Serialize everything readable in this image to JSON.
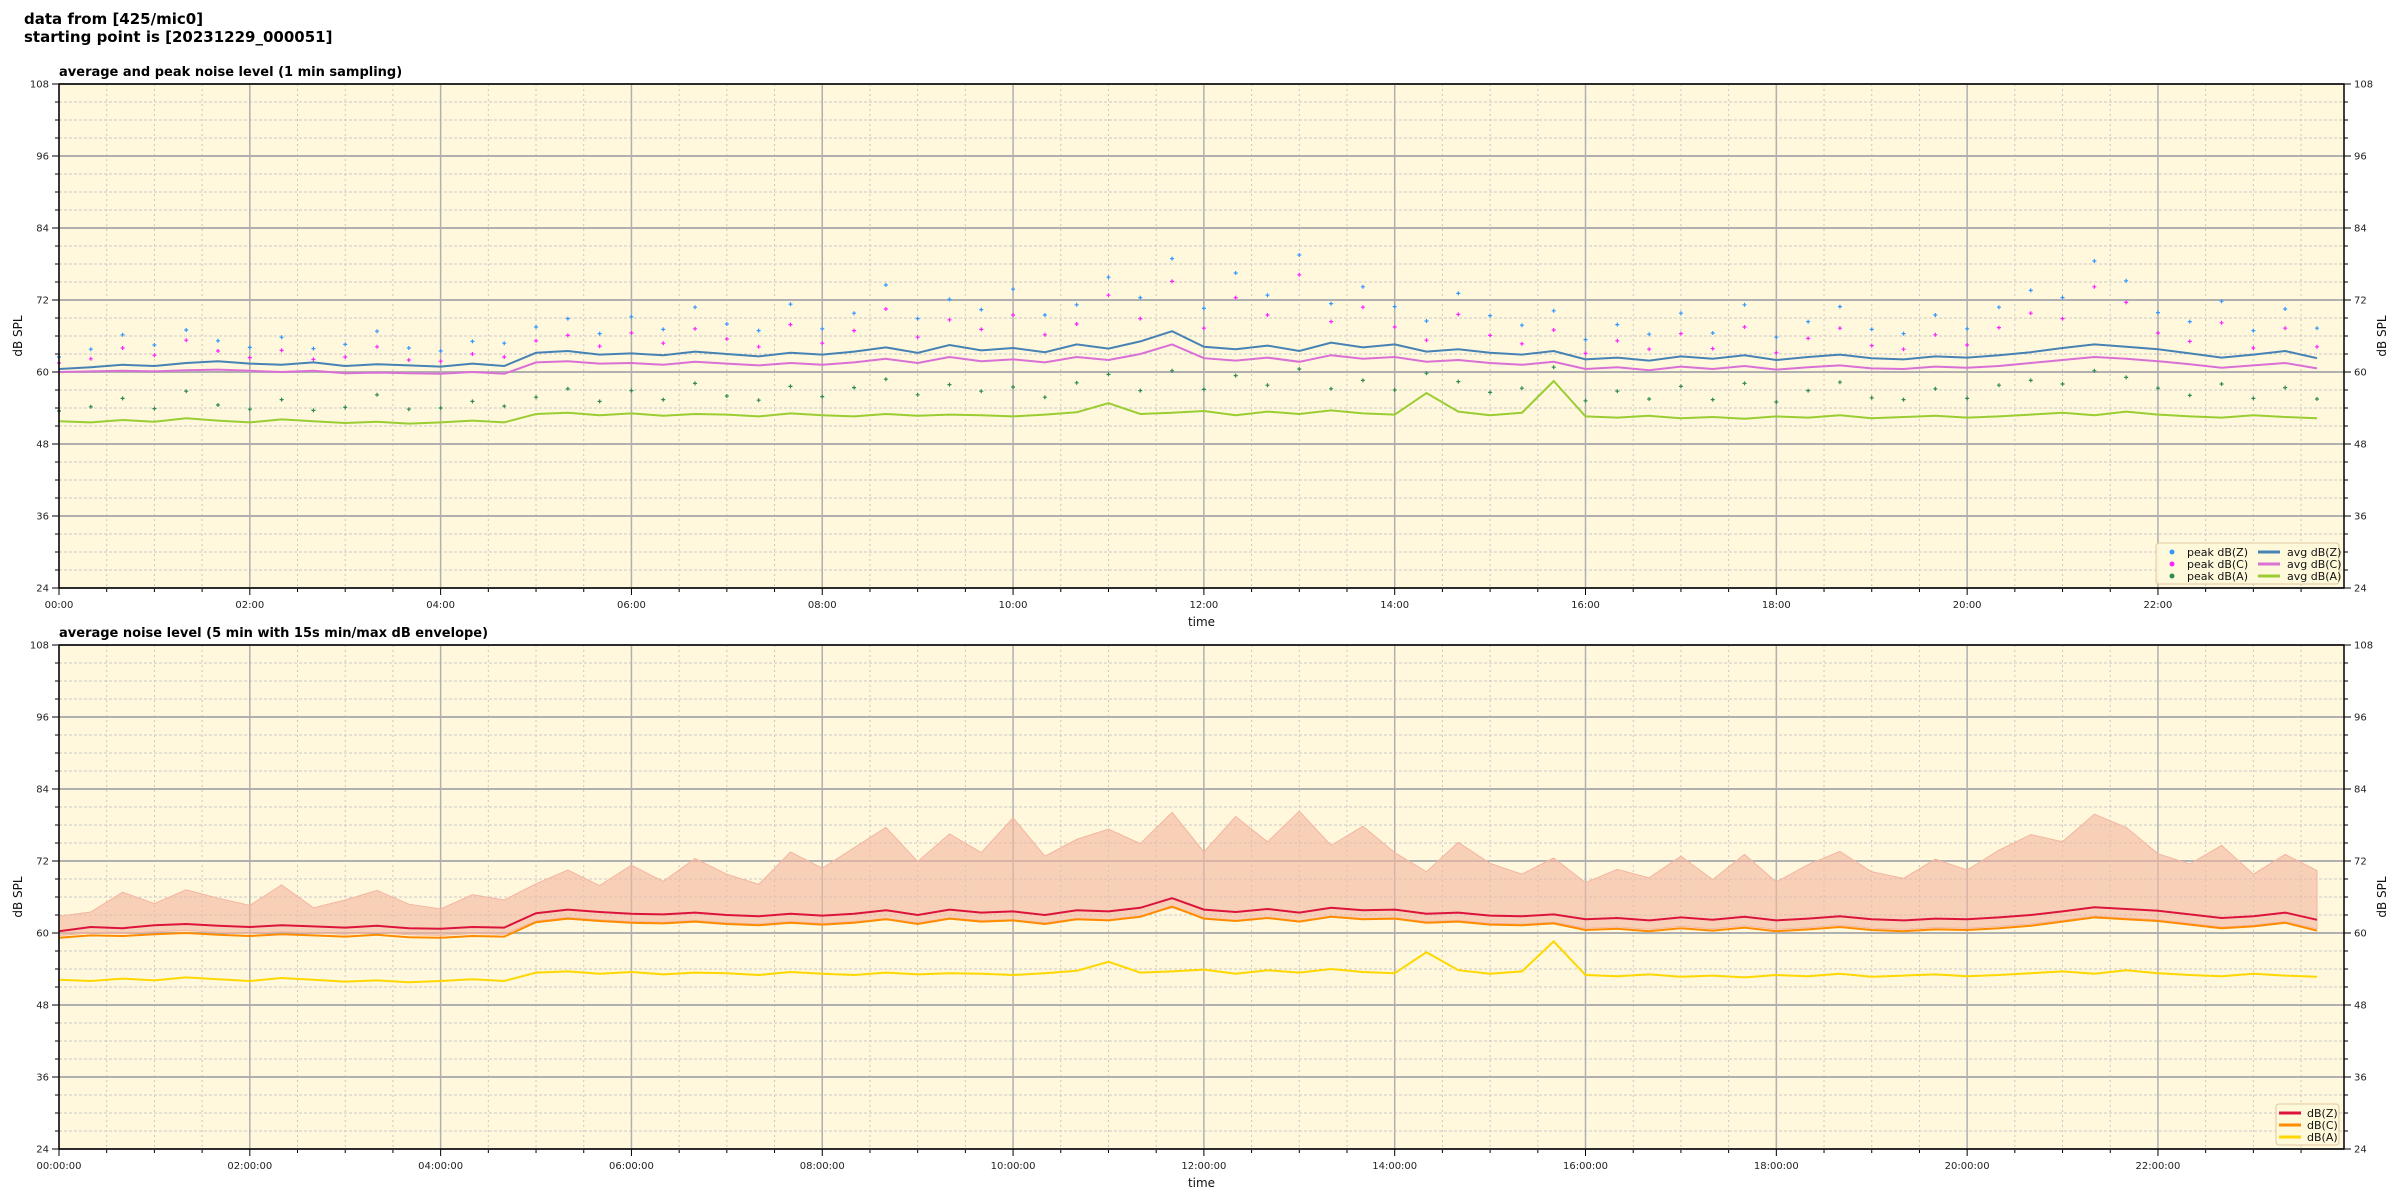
{
  "header": {
    "line1": "data from [425/mic0]",
    "line2": "starting point is [20231229_000051]"
  },
  "colors": {
    "background": "#fff8dc",
    "major_grid": "#b0b0b0",
    "minor_grid": "#c8c8c8"
  },
  "chart_data": [
    {
      "type": "line+scatter",
      "title": "average and peak noise level (1 min sampling)",
      "xlabel": "time",
      "ylabel": "dB SPL",
      "xlim": [
        "00:00",
        "23:57"
      ],
      "ylim": [
        24,
        108
      ],
      "xticks": [
        "00:00",
        "02:00",
        "04:00",
        "06:00",
        "08:00",
        "10:00",
        "12:00",
        "14:00",
        "16:00",
        "18:00",
        "20:00",
        "22:00"
      ],
      "yticks": [
        24,
        36,
        48,
        60,
        72,
        84,
        96,
        108
      ],
      "grid": true,
      "legend_placement": "lower-right",
      "x": [
        "00:00",
        "00:20",
        "00:40",
        "01:00",
        "01:20",
        "01:40",
        "02:00",
        "02:20",
        "02:40",
        "03:00",
        "03:20",
        "03:40",
        "04:00",
        "04:20",
        "04:40",
        "05:00",
        "05:20",
        "05:40",
        "06:00",
        "06:20",
        "06:40",
        "07:00",
        "07:20",
        "07:40",
        "08:00",
        "08:20",
        "08:40",
        "09:00",
        "09:20",
        "09:40",
        "10:00",
        "10:20",
        "10:40",
        "11:00",
        "11:20",
        "11:40",
        "12:00",
        "12:20",
        "12:40",
        "13:00",
        "13:20",
        "13:40",
        "14:00",
        "14:20",
        "14:40",
        "15:00",
        "15:20",
        "15:40",
        "16:00",
        "16:20",
        "16:40",
        "17:00",
        "17:20",
        "17:40",
        "18:00",
        "18:20",
        "18:40",
        "19:00",
        "19:20",
        "19:40",
        "20:00",
        "20:20",
        "20:40",
        "21:00",
        "21:20",
        "21:40",
        "22:00",
        "22:20",
        "22:40",
        "23:00",
        "23:20",
        "23:40"
      ],
      "series": [
        {
          "name": "peak dB(Z)",
          "kind": "scatter",
          "color": "#3399ff",
          "values": [
            62.5,
            63.8,
            66.2,
            64.5,
            67.0,
            65.2,
            64.1,
            65.8,
            63.9,
            64.6,
            66.8,
            64.0,
            63.5,
            65.1,
            64.8,
            67.5,
            68.9,
            66.4,
            69.2,
            67.1,
            70.8,
            68.0,
            66.9,
            71.3,
            67.2,
            69.8,
            74.5,
            68.9,
            72.1,
            70.4,
            73.8,
            69.5,
            71.2,
            75.8,
            72.4,
            78.9,
            70.6,
            76.5,
            72.8,
            79.5,
            71.4,
            74.2,
            70.9,
            68.5,
            73.1,
            69.4,
            67.8,
            70.2,
            65.4,
            67.9,
            66.3,
            69.8,
            66.5,
            71.2,
            65.8,
            68.4,
            70.9,
            67.1,
            66.4,
            69.5,
            67.2,
            70.8,
            73.6,
            72.4,
            78.5,
            75.2,
            69.9,
            68.4,
            71.8,
            66.9,
            70.5,
            67.3
          ]
        },
        {
          "name": "peak dB(C)",
          "kind": "scatter",
          "color": "#ff22ff",
          "values": [
            61.5,
            62.2,
            64.0,
            62.8,
            65.3,
            63.5,
            62.4,
            63.6,
            62.1,
            62.5,
            64.2,
            62.0,
            61.8,
            63.0,
            62.5,
            65.2,
            66.1,
            64.3,
            66.5,
            64.8,
            67.2,
            65.5,
            64.2,
            67.9,
            64.8,
            66.9,
            70.5,
            65.8,
            68.7,
            67.1,
            69.5,
            66.2,
            68.0,
            72.8,
            68.9,
            75.1,
            67.3,
            72.4,
            69.5,
            76.2,
            68.4,
            70.8,
            67.5,
            65.3,
            69.6,
            66.1,
            64.7,
            67.0,
            63.1,
            65.2,
            63.8,
            66.4,
            63.9,
            67.5,
            63.2,
            65.6,
            67.3,
            64.4,
            63.8,
            66.2,
            64.5,
            67.4,
            69.8,
            68.9,
            74.2,
            71.6,
            66.5,
            65.1,
            68.2,
            64.0,
            67.3,
            64.2
          ]
        },
        {
          "name": "peak dB(A)",
          "kind": "scatter",
          "color": "#2e8b57",
          "values": [
            53.5,
            54.2,
            55.6,
            53.9,
            56.8,
            54.5,
            53.8,
            55.4,
            53.6,
            54.1,
            56.2,
            53.8,
            54.0,
            55.1,
            54.3,
            55.8,
            57.2,
            55.1,
            56.9,
            55.4,
            58.1,
            56.0,
            55.3,
            57.6,
            55.9,
            57.4,
            58.8,
            56.2,
            57.9,
            56.8,
            57.5,
            55.8,
            58.2,
            59.6,
            56.9,
            60.2,
            57.1,
            59.4,
            57.8,
            60.5,
            57.2,
            58.6,
            57.0,
            59.8,
            58.4,
            56.6,
            57.3,
            60.8,
            55.2,
            56.8,
            55.5,
            57.6,
            55.4,
            58.1,
            55.0,
            56.9,
            58.3,
            55.7,
            55.4,
            57.2,
            55.6,
            57.8,
            58.6,
            58.0,
            60.2,
            59.1,
            57.3,
            56.1,
            58.0,
            55.6,
            57.4,
            55.5
          ]
        },
        {
          "name": "avg dB(Z)",
          "kind": "line",
          "color": "#4682b4",
          "values": [
            60.5,
            60.8,
            61.2,
            61.0,
            61.5,
            61.8,
            61.4,
            61.2,
            61.6,
            61.0,
            61.3,
            61.1,
            60.9,
            61.4,
            61.0,
            63.2,
            63.5,
            62.9,
            63.1,
            62.8,
            63.4,
            63.0,
            62.6,
            63.2,
            62.9,
            63.4,
            64.1,
            63.2,
            64.5,
            63.6,
            64.0,
            63.3,
            64.6,
            63.9,
            65.1,
            66.8,
            64.2,
            63.8,
            64.4,
            63.5,
            64.9,
            64.1,
            64.6,
            63.4,
            63.8,
            63.2,
            62.9,
            63.5,
            62.1,
            62.4,
            61.9,
            62.6,
            62.2,
            62.8,
            62.0,
            62.5,
            62.9,
            62.3,
            62.1,
            62.6,
            62.4,
            62.8,
            63.3,
            64.0,
            64.6,
            64.2,
            63.8,
            63.1,
            62.4,
            62.9,
            63.5,
            62.3
          ]
        },
        {
          "name": "avg dB(C)",
          "kind": "line",
          "color": "#da70d6",
          "values": [
            60.0,
            60.1,
            60.2,
            60.1,
            60.3,
            60.4,
            60.2,
            60.0,
            60.2,
            59.8,
            59.9,
            59.8,
            59.7,
            60.0,
            59.7,
            61.6,
            61.8,
            61.4,
            61.5,
            61.2,
            61.7,
            61.4,
            61.1,
            61.5,
            61.2,
            61.6,
            62.2,
            61.5,
            62.5,
            61.8,
            62.1,
            61.6,
            62.5,
            62.0,
            63.0,
            64.6,
            62.3,
            61.9,
            62.4,
            61.7,
            62.8,
            62.2,
            62.5,
            61.7,
            62.0,
            61.5,
            61.2,
            61.7,
            60.5,
            60.8,
            60.3,
            60.9,
            60.5,
            61.0,
            60.4,
            60.8,
            61.1,
            60.6,
            60.5,
            60.9,
            60.7,
            61.0,
            61.5,
            62.0,
            62.5,
            62.2,
            61.8,
            61.3,
            60.7,
            61.1,
            61.5,
            60.6
          ]
        },
        {
          "name": "avg dB(A)",
          "kind": "line",
          "color": "#9acd32",
          "values": [
            51.8,
            51.6,
            52.0,
            51.7,
            52.3,
            51.9,
            51.6,
            52.1,
            51.8,
            51.5,
            51.7,
            51.4,
            51.6,
            51.9,
            51.6,
            53.0,
            53.2,
            52.8,
            53.1,
            52.7,
            53.0,
            52.9,
            52.6,
            53.1,
            52.8,
            52.6,
            53.0,
            52.7,
            52.9,
            52.8,
            52.6,
            52.9,
            53.3,
            54.8,
            53.0,
            53.2,
            53.5,
            52.8,
            53.4,
            53.0,
            53.6,
            53.1,
            52.9,
            56.5,
            53.4,
            52.8,
            53.2,
            58.5,
            52.6,
            52.4,
            52.7,
            52.3,
            52.5,
            52.2,
            52.6,
            52.4,
            52.8,
            52.3,
            52.5,
            52.7,
            52.4,
            52.6,
            52.9,
            53.2,
            52.8,
            53.4,
            52.9,
            52.6,
            52.4,
            52.8,
            52.5,
            52.3
          ]
        }
      ]
    },
    {
      "type": "line+area",
      "title": "average noise level (5 min with 15s min/max dB envelope)",
      "xlabel": "time",
      "ylabel": "dB SPL",
      "xlim": [
        "00:00:00",
        "23:57:00"
      ],
      "ylim": [
        24,
        108
      ],
      "xticks": [
        "00:00:00",
        "02:00:00",
        "04:00:00",
        "06:00:00",
        "08:00:00",
        "10:00:00",
        "12:00:00",
        "14:00:00",
        "16:00:00",
        "18:00:00",
        "20:00:00",
        "22:00:00"
      ],
      "yticks": [
        24,
        36,
        48,
        60,
        72,
        84,
        96,
        108
      ],
      "grid": true,
      "legend_placement": "lower-right",
      "x": [
        "00:00",
        "00:20",
        "00:40",
        "01:00",
        "01:20",
        "01:40",
        "02:00",
        "02:20",
        "02:40",
        "03:00",
        "03:20",
        "03:40",
        "04:00",
        "04:20",
        "04:40",
        "05:00",
        "05:20",
        "05:40",
        "06:00",
        "06:20",
        "06:40",
        "07:00",
        "07:20",
        "07:40",
        "08:00",
        "08:20",
        "08:40",
        "09:00",
        "09:20",
        "09:40",
        "10:00",
        "10:20",
        "10:40",
        "11:00",
        "11:20",
        "11:40",
        "12:00",
        "12:20",
        "12:40",
        "13:00",
        "13:20",
        "13:40",
        "14:00",
        "14:20",
        "14:40",
        "15:00",
        "15:20",
        "15:40",
        "16:00",
        "16:20",
        "16:40",
        "17:00",
        "17:20",
        "17:40",
        "18:00",
        "18:20",
        "18:40",
        "19:00",
        "19:20",
        "19:40",
        "20:00",
        "20:20",
        "20:40",
        "21:00",
        "21:20",
        "21:40",
        "22:00",
        "22:20",
        "22:40",
        "23:00",
        "23:20",
        "23:40"
      ],
      "envelope": {
        "color": "#f4b5a0",
        "max": [
          62.8,
          63.5,
          66.8,
          64.9,
          67.2,
          65.8,
          64.6,
          68.0,
          64.2,
          65.5,
          67.1,
          64.8,
          64.0,
          66.4,
          65.5,
          68.2,
          70.5,
          67.9,
          71.3,
          68.6,
          72.4,
          69.8,
          68.1,
          73.5,
          70.8,
          74.2,
          77.6,
          71.9,
          76.5,
          73.4,
          79.2,
          72.8,
          75.6,
          77.3,
          74.9,
          80.1,
          73.5,
          79.4,
          75.2,
          80.3,
          74.6,
          77.8,
          73.4,
          70.2,
          75.1,
          71.6,
          69.8,
          72.5,
          68.4,
          70.6,
          69.2,
          72.8,
          68.9,
          73.1,
          68.5,
          71.4,
          73.6,
          70.2,
          69.1,
          72.3,
          70.5,
          73.8,
          76.4,
          75.2,
          79.8,
          77.6,
          73.2,
          71.5,
          74.6,
          69.8,
          73.1,
          70.4
        ],
        "min": [
          59.6,
          60.0,
          59.9,
          60.2,
          60.4,
          60.1,
          59.9,
          60.2,
          60.0,
          59.8,
          60.1,
          59.7,
          59.6,
          59.9,
          59.8,
          62.0,
          62.6,
          62.2,
          61.9,
          61.8,
          62.1,
          61.7,
          61.5,
          61.9,
          61.6,
          61.9,
          62.4,
          61.7,
          62.5,
          62.1,
          62.2,
          61.7,
          62.4,
          62.2,
          62.8,
          64.2,
          62.5,
          62.1,
          62.6,
          62.0,
          62.8,
          62.4,
          62.5,
          61.9,
          62.1,
          61.6,
          61.5,
          61.8,
          60.8,
          61.0,
          60.6,
          61.1,
          60.7,
          61.2,
          60.6,
          60.9,
          61.3,
          60.8,
          60.6,
          60.9,
          60.8,
          61.1,
          61.5,
          62.1,
          62.8,
          62.5,
          62.2,
          61.6,
          61.0,
          61.3,
          61.9,
          60.7
        ]
      },
      "series": [
        {
          "name": "dB(Z)",
          "kind": "line",
          "color": "#dc143c",
          "values": [
            60.3,
            61.0,
            60.8,
            61.3,
            61.5,
            61.2,
            61.0,
            61.3,
            61.1,
            60.9,
            61.2,
            60.8,
            60.7,
            61.0,
            60.9,
            63.3,
            63.9,
            63.5,
            63.2,
            63.1,
            63.4,
            63.0,
            62.8,
            63.2,
            62.9,
            63.2,
            63.8,
            63.0,
            63.9,
            63.4,
            63.6,
            63.0,
            63.8,
            63.6,
            64.2,
            65.8,
            63.9,
            63.5,
            64.0,
            63.4,
            64.2,
            63.8,
            63.9,
            63.2,
            63.4,
            62.9,
            62.8,
            63.1,
            62.3,
            62.5,
            62.1,
            62.6,
            62.2,
            62.7,
            62.1,
            62.4,
            62.8,
            62.3,
            62.1,
            62.4,
            62.3,
            62.6,
            63.0,
            63.6,
            64.3,
            64.0,
            63.7,
            63.1,
            62.5,
            62.8,
            63.4,
            62.2
          ]
        },
        {
          "name": "dB(C)",
          "kind": "line",
          "color": "#ff8c00",
          "values": [
            59.2,
            59.6,
            59.5,
            59.8,
            60.0,
            59.7,
            59.5,
            59.8,
            59.6,
            59.4,
            59.7,
            59.3,
            59.2,
            59.5,
            59.4,
            61.8,
            62.4,
            62.0,
            61.7,
            61.6,
            61.9,
            61.5,
            61.3,
            61.7,
            61.4,
            61.7,
            62.3,
            61.5,
            62.4,
            61.9,
            62.1,
            61.5,
            62.3,
            62.1,
            62.7,
            64.4,
            62.4,
            62.0,
            62.5,
            61.9,
            62.7,
            62.3,
            62.4,
            61.7,
            61.9,
            61.4,
            61.3,
            61.6,
            60.5,
            60.7,
            60.3,
            60.8,
            60.4,
            60.9,
            60.3,
            60.6,
            61.0,
            60.5,
            60.3,
            60.6,
            60.5,
            60.8,
            61.2,
            61.9,
            62.6,
            62.3,
            62.0,
            61.4,
            60.8,
            61.1,
            61.7,
            60.4
          ]
        },
        {
          "name": "dB(A)",
          "kind": "line",
          "color": "#ffd700",
          "values": [
            52.2,
            52.0,
            52.4,
            52.1,
            52.6,
            52.3,
            52.0,
            52.5,
            52.2,
            51.9,
            52.1,
            51.8,
            52.0,
            52.3,
            52.0,
            53.4,
            53.6,
            53.2,
            53.5,
            53.1,
            53.4,
            53.3,
            53.0,
            53.5,
            53.2,
            53.0,
            53.4,
            53.1,
            53.3,
            53.2,
            53.0,
            53.3,
            53.7,
            55.2,
            53.4,
            53.6,
            53.9,
            53.2,
            53.8,
            53.4,
            54.0,
            53.5,
            53.3,
            56.8,
            53.8,
            53.2,
            53.6,
            58.6,
            53.0,
            52.8,
            53.1,
            52.7,
            52.9,
            52.6,
            53.0,
            52.8,
            53.2,
            52.7,
            52.9,
            53.1,
            52.8,
            53.0,
            53.3,
            53.6,
            53.2,
            53.8,
            53.3,
            53.0,
            52.8,
            53.2,
            52.9,
            52.7
          ]
        }
      ]
    }
  ]
}
